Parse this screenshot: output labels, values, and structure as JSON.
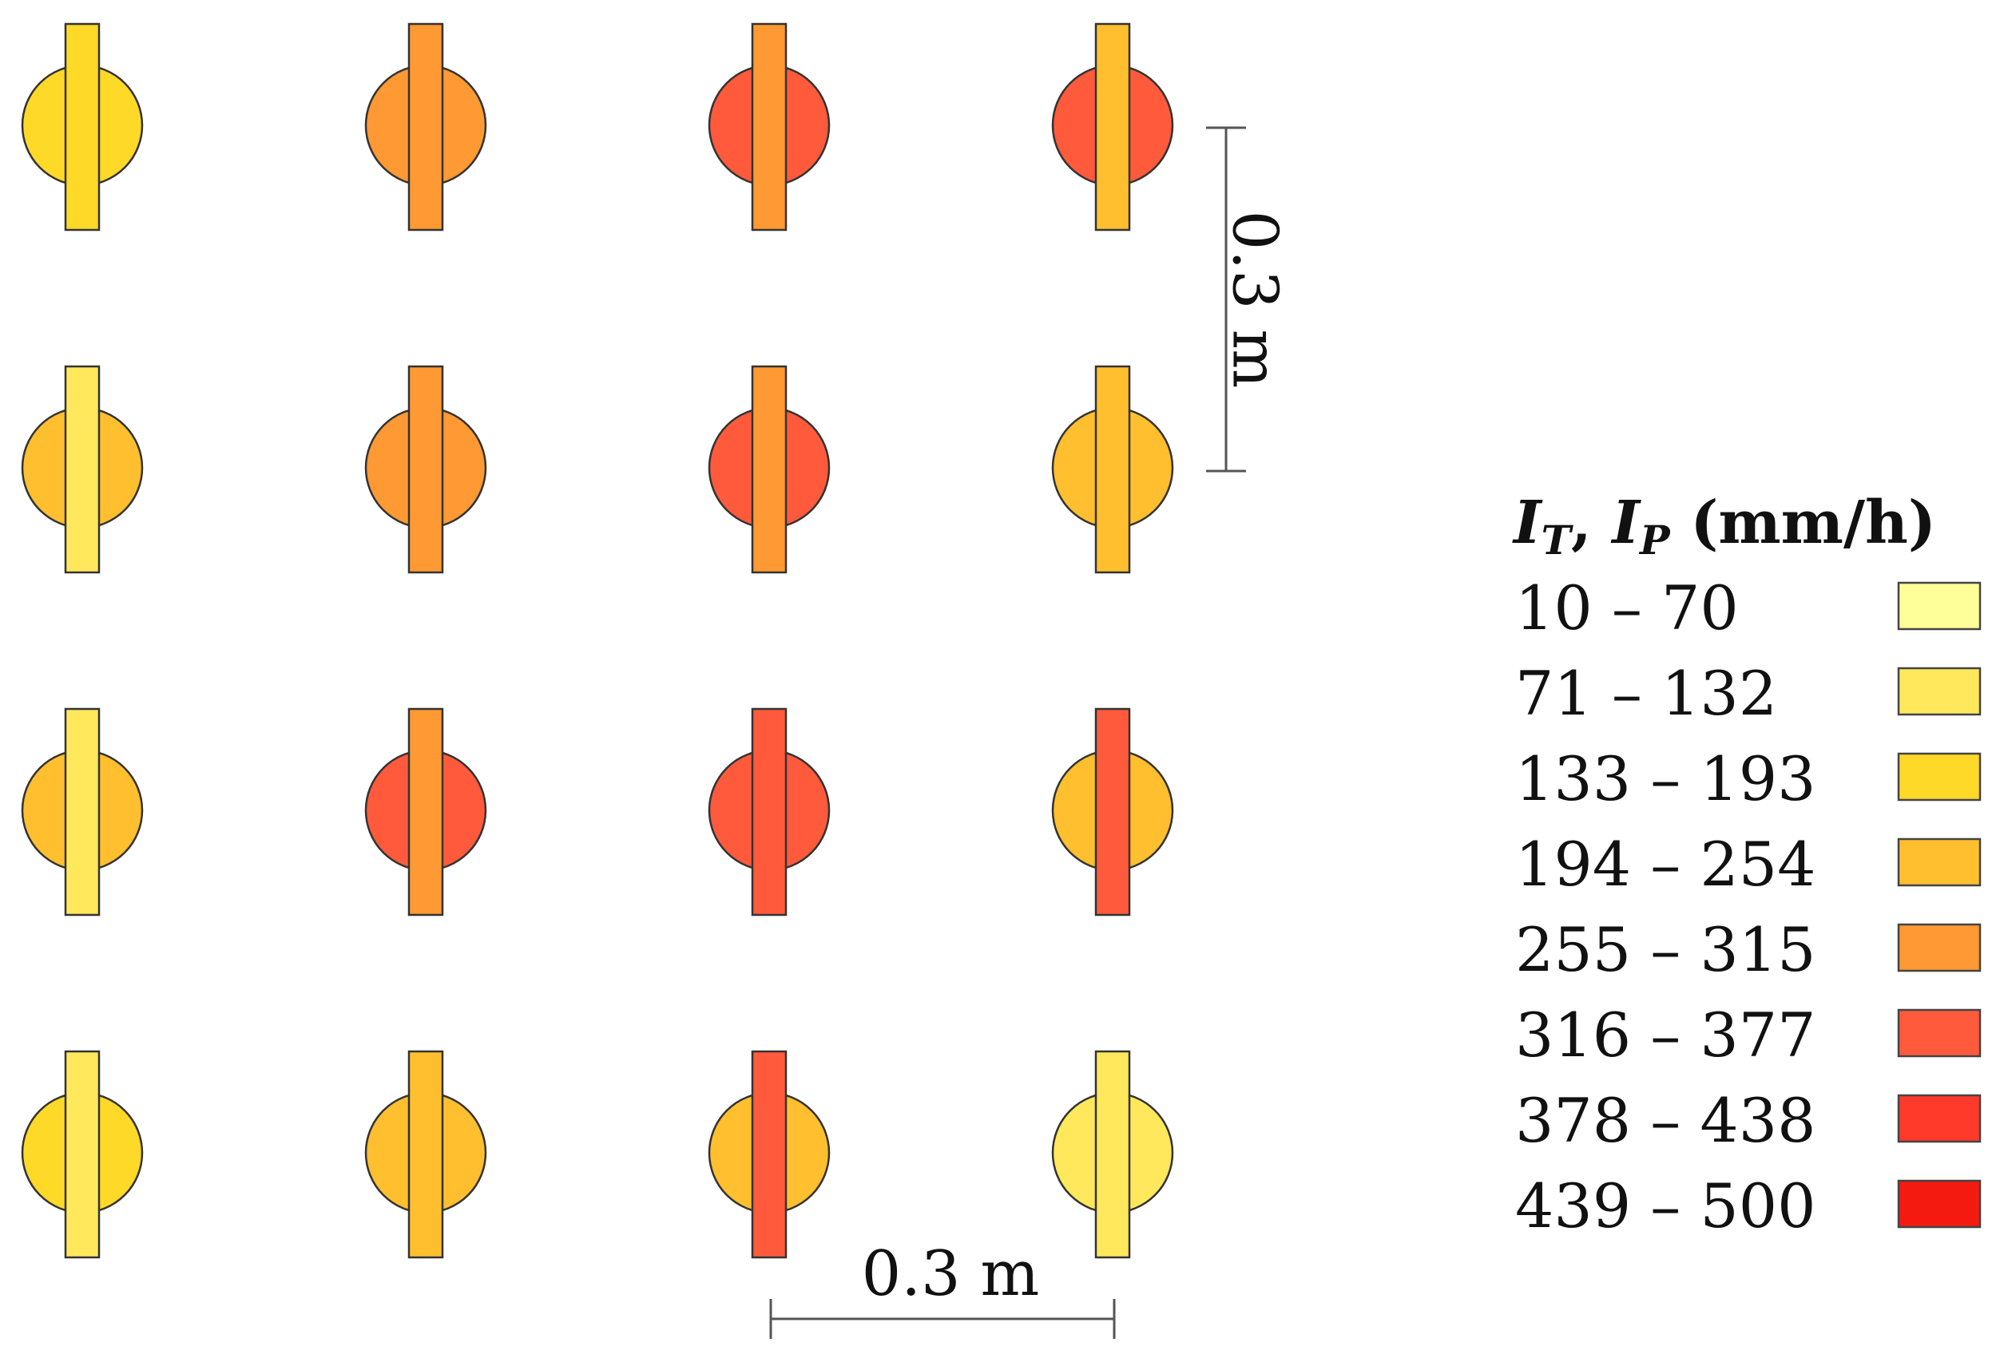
{
  "legend": {
    "title_it": "I",
    "title_it_sub": "T",
    "title_sep": ", ",
    "title_ip": "I",
    "title_ip_sub": "P",
    "title_unit": " (mm/h)",
    "classes": [
      {
        "label": "10 – 70",
        "color": "#FFFF99"
      },
      {
        "label": "71 – 132",
        "color": "#FFE85C"
      },
      {
        "label": "133 – 193",
        "color": "#FFD928"
      },
      {
        "label": "194 – 254",
        "color": "#FFBF2E"
      },
      {
        "label": "255 – 315",
        "color": "#FF9933"
      },
      {
        "label": "316 – 377",
        "color": "#FF5A3C"
      },
      {
        "label": "378 – 438",
        "color": "#FF3A2A"
      },
      {
        "label": "439 – 500",
        "color": "#F51A10"
      }
    ]
  },
  "scale_bars": {
    "horizontal_label": "0.3 m",
    "vertical_label": "0.3 m"
  },
  "grid": {
    "rows": [
      [
        {
          "circle": "133 – 193",
          "bar": "133 – 193"
        },
        {
          "circle": "255 – 315",
          "bar": "255 – 315"
        },
        {
          "circle": "316 – 377",
          "bar": "255 – 315"
        },
        {
          "circle": "316 – 377",
          "bar": "194 – 254"
        }
      ],
      [
        {
          "circle": "194 – 254",
          "bar": "71 – 132"
        },
        {
          "circle": "255 – 315",
          "bar": "255 – 315"
        },
        {
          "circle": "316 – 377",
          "bar": "255 – 315"
        },
        {
          "circle": "194 – 254",
          "bar": "194 – 254"
        }
      ],
      [
        {
          "circle": "194 – 254",
          "bar": "71 – 132"
        },
        {
          "circle": "316 – 377",
          "bar": "255 – 315"
        },
        {
          "circle": "316 – 377",
          "bar": "316 – 377"
        },
        {
          "circle": "194 – 254",
          "bar": "316 – 377"
        }
      ],
      [
        {
          "circle": "133 – 193",
          "bar": "71 – 132"
        },
        {
          "circle": "194 – 254",
          "bar": "194 – 254"
        },
        {
          "circle": "194 – 254",
          "bar": "316 – 377"
        },
        {
          "circle": "71 – 132",
          "bar": "71 – 132"
        }
      ]
    ]
  }
}
